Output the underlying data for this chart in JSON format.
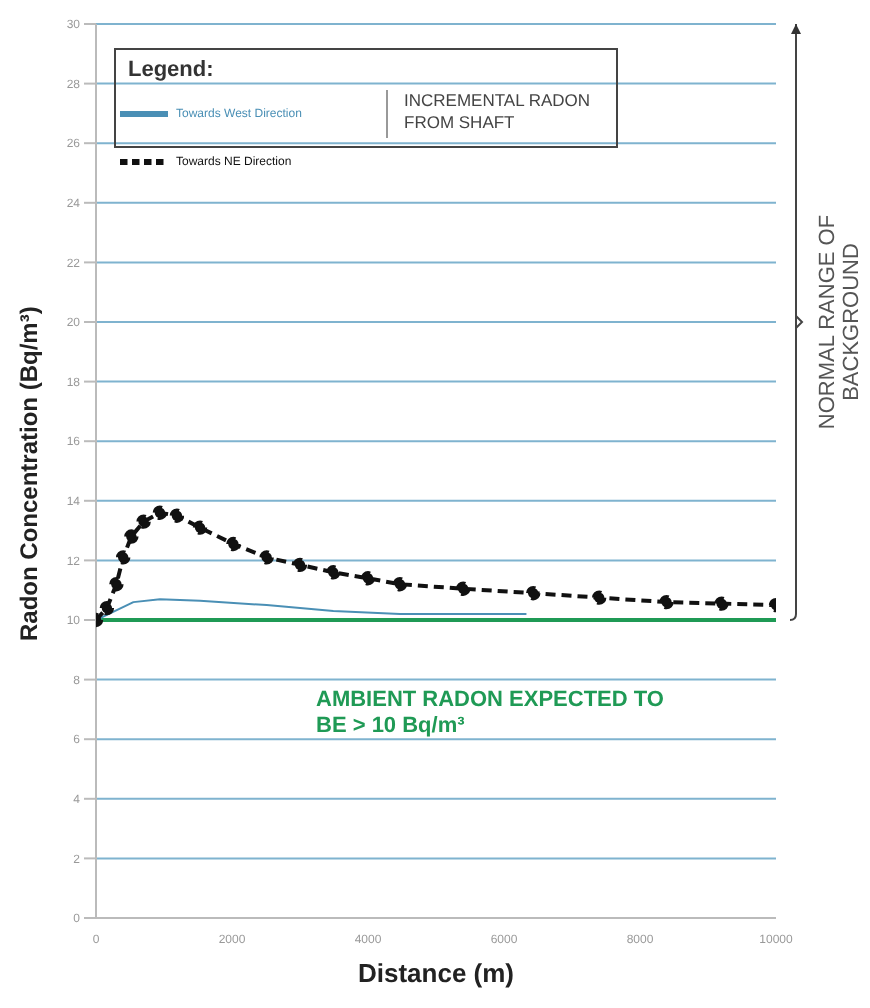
{
  "chart_data": {
    "type": "line",
    "xlabel": "Distance (m)",
    "ylabel": "Radon Concentration  (Bq/m³)",
    "legend_title": "Legend:",
    "legend": "top left",
    "grid": "y",
    "xlim": [
      0,
      10000
    ],
    "xticks": [
      0,
      2000,
      4000,
      6000,
      8000,
      10000
    ],
    "ylim": [
      0,
      30
    ],
    "yticks": [
      0,
      2,
      4,
      6,
      8,
      10,
      12,
      14,
      16,
      18,
      20,
      22,
      24,
      26,
      28,
      30
    ],
    "series": [
      {
        "name": "Towards West Direction",
        "color": "#4a8fb5",
        "line_style": "solid",
        "marker": "none",
        "x": [
          0,
          550,
          940,
          1530,
          2510,
          3490,
          4470,
          5400,
          6330
        ],
        "values": [
          10.0,
          10.6,
          10.7,
          10.65,
          10.5,
          10.3,
          10.2,
          10.2,
          10.2
        ]
      },
      {
        "name": "Towards NE Direction",
        "color": "#111111",
        "line_style": "dashed",
        "marker": "circle",
        "x": [
          0,
          160,
          300,
          400,
          520,
          700,
          940,
          1190,
          1530,
          2020,
          2510,
          3000,
          3490,
          4000,
          4470,
          5400,
          6430,
          7400,
          8390,
          9200,
          10000
        ],
        "values": [
          10.0,
          10.4,
          11.2,
          12.1,
          12.8,
          13.3,
          13.6,
          13.5,
          13.1,
          12.55,
          12.1,
          11.85,
          11.6,
          11.4,
          11.2,
          11.05,
          10.9,
          10.75,
          10.6,
          10.55,
          10.5
        ]
      }
    ],
    "ref_lines": [
      {
        "axis": "y",
        "value": 10,
        "label": "AMBIENT RADON EXPECTED TO BE > 10 Bq/m³",
        "color": "#1f9a55"
      }
    ],
    "annotations": [
      "INCREMENTAL RADON FROM SHAFT",
      "NORMAL RANGE OF BACKGROUND"
    ]
  }
}
